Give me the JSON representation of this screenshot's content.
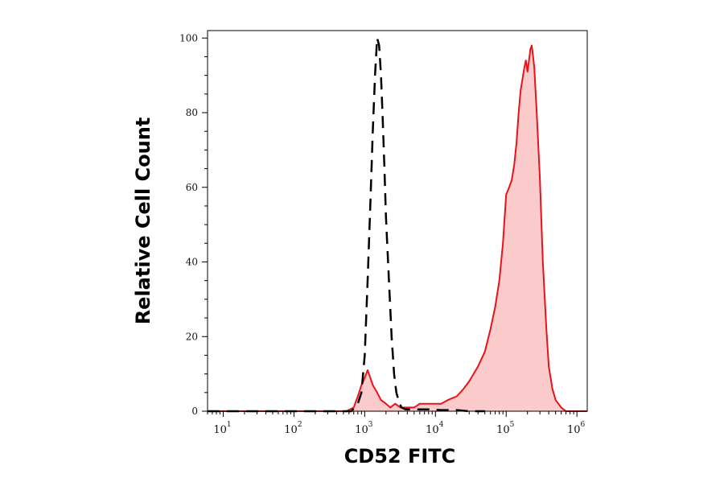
{
  "chart_data": {
    "type": "area",
    "title": "",
    "xlabel": "CD52 FITC",
    "ylabel": "Relative Cell Count",
    "x_scale": "log",
    "xlim": [
      6,
      1400000
    ],
    "ylim": [
      0,
      102
    ],
    "x_ticks": [
      {
        "base": "10",
        "exp": "1",
        "value": 10
      },
      {
        "base": "10",
        "exp": "2",
        "value": 100
      },
      {
        "base": "10",
        "exp": "3",
        "value": 1000
      },
      {
        "base": "10",
        "exp": "4",
        "value": 10000
      },
      {
        "base": "10",
        "exp": "5",
        "value": 100000
      },
      {
        "base": "10",
        "exp": "6",
        "value": 1000000
      }
    ],
    "y_ticks": [
      {
        "label": "0",
        "value": 0
      },
      {
        "label": "20",
        "value": 20
      },
      {
        "label": "40",
        "value": 40
      },
      {
        "label": "60",
        "value": 60
      },
      {
        "label": "80",
        "value": 80
      },
      {
        "label": "100",
        "value": 100
      }
    ],
    "grid": false,
    "series": [
      {
        "line_color": "#e8121b",
        "fill_color": "#fbcaca",
        "line_style": "solid",
        "filled": true,
        "x": [
          6,
          50,
          300,
          550,
          700,
          800,
          900,
          1000,
          1100,
          1200,
          1300,
          1500,
          1700,
          2000,
          2300,
          2700,
          3200,
          4000,
          5000,
          6000,
          8000,
          10000,
          12000,
          15000,
          20000,
          25000,
          30000,
          40000,
          50000,
          60000,
          70000,
          80000,
          90000,
          100000,
          110000,
          120000,
          130000,
          140000,
          150000,
          160000,
          170000,
          180000,
          190000,
          200000,
          210000,
          220000,
          230000,
          240000,
          250000,
          270000,
          300000,
          330000,
          370000,
          400000,
          450000,
          500000,
          600000,
          700000,
          800000,
          1000000,
          1400000
        ],
        "y": [
          0,
          0,
          0,
          0,
          1,
          4,
          7,
          9,
          11,
          9,
          7,
          5,
          3,
          2,
          1,
          2,
          1,
          1,
          1,
          2,
          2,
          2,
          2,
          3,
          4,
          6,
          8,
          12,
          16,
          22,
          28,
          35,
          45,
          58,
          60,
          62,
          66,
          72,
          80,
          86,
          89,
          92,
          94,
          91,
          94,
          97,
          98,
          95,
          92,
          80,
          62,
          40,
          22,
          12,
          6,
          3,
          1,
          0,
          0,
          0,
          0
        ]
      },
      {
        "line_color": "#000000",
        "line_style": "dashed",
        "filled": false,
        "x": [
          6,
          300,
          650,
          800,
          900,
          1000,
          1100,
          1200,
          1300,
          1400,
          1500,
          1600,
          1700,
          1800,
          1900,
          2000,
          2200,
          2400,
          2600,
          2800,
          3000,
          3300,
          3800,
          5000,
          8000,
          12000,
          20000,
          30000,
          50000
        ],
        "y": [
          0,
          0,
          0,
          2,
          5,
          15,
          35,
          55,
          75,
          90,
          100,
          98,
          90,
          78,
          65,
          52,
          35,
          20,
          10,
          5,
          3,
          1,
          0.5,
          0.5,
          0.5,
          0.3,
          0.3,
          0,
          0
        ]
      }
    ]
  }
}
